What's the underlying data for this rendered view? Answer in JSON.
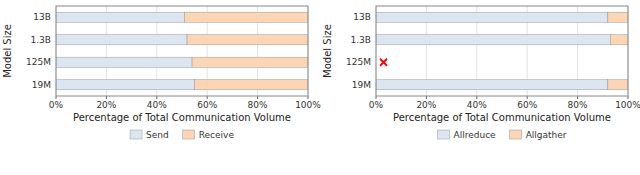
{
  "chart_data": [
    {
      "type": "bar",
      "orientation": "horizontal",
      "stacked": true,
      "categories": [
        "19M",
        "125M",
        "1.3B",
        "13B"
      ],
      "series": [
        {
          "name": "Send",
          "color": "#dce6f1",
          "values": [
            55,
            54,
            52,
            51
          ]
        },
        {
          "name": "Receive",
          "color": "#fcd5b4",
          "values": [
            45,
            46,
            48,
            49
          ]
        }
      ],
      "xlabel": "Percentage of Total Communication Volume",
      "ylabel": "Model Size",
      "xlim": [
        0,
        100
      ],
      "xticks": [
        {
          "value": 0,
          "label": "0%"
        },
        {
          "value": 20,
          "label": "20%"
        },
        {
          "value": 40,
          "label": "40%"
        },
        {
          "value": 60,
          "label": "60%"
        },
        {
          "value": 80,
          "label": "80%"
        },
        {
          "value": 100,
          "label": "100%"
        }
      ],
      "grid": true,
      "legend": "bottom"
    },
    {
      "type": "bar",
      "orientation": "horizontal",
      "stacked": true,
      "categories": [
        "19M",
        "125M",
        "1.3B",
        "13B"
      ],
      "series": [
        {
          "name": "Allreduce",
          "color": "#dce6f1",
          "values": [
            92,
            0,
            93,
            92
          ]
        },
        {
          "name": "Allgather",
          "color": "#fcd5b4",
          "values": [
            8,
            0,
            7,
            8
          ]
        },
        {
          "type": "scatter",
          "marker": "x",
          "color": "red",
          "values": [
            null,
            3,
            null,
            null
          ]
        }
      ],
      "xlabel": "Percentage of Total Communication Volume",
      "ylabel": "Model Size",
      "xlim": [
        0,
        100
      ],
      "xticks": [
        {
          "value": 0,
          "label": "0%"
        },
        {
          "value": 20,
          "label": "20%"
        },
        {
          "value": 40,
          "label": "40%"
        },
        {
          "value": 60,
          "label": "60%"
        },
        {
          "value": 80,
          "label": "80%"
        },
        {
          "value": 100,
          "label": "100%"
        }
      ],
      "grid": true,
      "legend": "bottom"
    }
  ]
}
